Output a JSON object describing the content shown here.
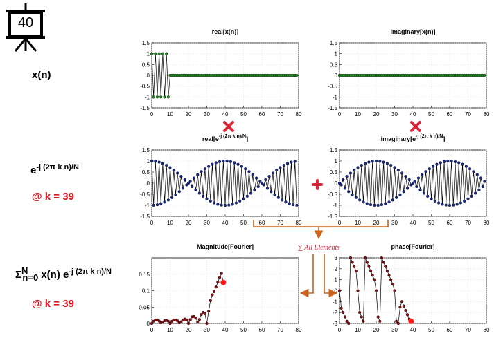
{
  "slide_badge": "40",
  "row_labels": {
    "xn": "x(n)",
    "kernel_base": "e",
    "kernel_exp": "-j (2π k n)/N",
    "k_value_1": "@ k = 39",
    "sum_symbol": "Σ",
    "sum_upper": "N",
    "sum_lower": "n=0",
    "sum_term": " x(n) e",
    "sum_exp": "-j (2π k n)/N",
    "k_value_2": "@ k = 39"
  },
  "annotations": {
    "sum_note": "∑ All Elements",
    "multiply_icon": "multiply-icon",
    "plus_icon": "plus-icon"
  },
  "colors": {
    "green_marker": "#1a8a1a",
    "blue_marker": "#1a2a8c",
    "red_marker": "#8b0f12",
    "highlight": "#ff1a1a",
    "arrow": "#c8641e",
    "red_icon": "#d8263a"
  },
  "chart_data": [
    {
      "id": "real_x",
      "type": "line",
      "title": "real[x(n)]",
      "xlim": [
        0,
        80
      ],
      "ylim": [
        -1.5,
        1.5
      ],
      "xticks": [
        "0",
        "10",
        "20",
        "30",
        "40",
        "50",
        "60",
        "70",
        "80"
      ],
      "yticks": [
        "1.5",
        "1",
        "0.5",
        "0",
        "-0.5",
        "-1",
        "-1.5"
      ],
      "grid": true,
      "series": [
        {
          "x": [
            0,
            1,
            2,
            3,
            4,
            5,
            6,
            7,
            8,
            9,
            10,
            11,
            12,
            13,
            14,
            15,
            16,
            17,
            18,
            19,
            20,
            21,
            22,
            23,
            24,
            25,
            26,
            27,
            28,
            29,
            30,
            31,
            32,
            33,
            34,
            35,
            36,
            37,
            38,
            39,
            40,
            41,
            42,
            43,
            44,
            45,
            46,
            47,
            48,
            49,
            50,
            51,
            52,
            53,
            54,
            55,
            56,
            57,
            58,
            59,
            60,
            61,
            62,
            63,
            64,
            65,
            66,
            67,
            68,
            69,
            70,
            71,
            72,
            73,
            74,
            75,
            76,
            77,
            78,
            79
          ],
          "y": [
            1,
            -1,
            1,
            -1,
            1,
            -1,
            1,
            -1,
            1,
            -1,
            0,
            0,
            0,
            0,
            0,
            0,
            0,
            0,
            0,
            0,
            0,
            0,
            0,
            0,
            0,
            0,
            0,
            0,
            0,
            0,
            0,
            0,
            0,
            0,
            0,
            0,
            0,
            0,
            0,
            0,
            0,
            0,
            0,
            0,
            0,
            0,
            0,
            0,
            0,
            0,
            0,
            0,
            0,
            0,
            0,
            0,
            0,
            0,
            0,
            0,
            0,
            0,
            0,
            0,
            0,
            0,
            0,
            0,
            0,
            0,
            0,
            0,
            0,
            0,
            0,
            0,
            0,
            0,
            0,
            0
          ]
        }
      ]
    },
    {
      "id": "imag_x",
      "type": "line",
      "title": "imaginary[x(n)]",
      "xlim": [
        0,
        80
      ],
      "ylim": [
        -1.5,
        1.5
      ],
      "xticks": [
        "0",
        "10",
        "20",
        "30",
        "40",
        "50",
        "60",
        "70",
        "80"
      ],
      "yticks": [
        "1.5",
        "1",
        "0.5",
        "0",
        "-0.5",
        "-1",
        "-1.5"
      ],
      "grid": true,
      "series": [
        {
          "x": [
            0,
            1,
            2,
            3,
            4,
            5,
            6,
            7,
            8,
            9,
            10,
            11,
            12,
            13,
            14,
            15,
            16,
            17,
            18,
            19,
            20,
            21,
            22,
            23,
            24,
            25,
            26,
            27,
            28,
            29,
            30,
            31,
            32,
            33,
            34,
            35,
            36,
            37,
            38,
            39,
            40,
            41,
            42,
            43,
            44,
            45,
            46,
            47,
            48,
            49,
            50,
            51,
            52,
            53,
            54,
            55,
            56,
            57,
            58,
            59,
            60,
            61,
            62,
            63,
            64,
            65,
            66,
            67,
            68,
            69,
            70,
            71,
            72,
            73,
            74,
            75,
            76,
            77,
            78,
            79
          ],
          "y": [
            0,
            0,
            0,
            0,
            0,
            0,
            0,
            0,
            0,
            0,
            0,
            0,
            0,
            0,
            0,
            0,
            0,
            0,
            0,
            0,
            0,
            0,
            0,
            0,
            0,
            0,
            0,
            0,
            0,
            0,
            0,
            0,
            0,
            0,
            0,
            0,
            0,
            0,
            0,
            0,
            0,
            0,
            0,
            0,
            0,
            0,
            0,
            0,
            0,
            0,
            0,
            0,
            0,
            0,
            0,
            0,
            0,
            0,
            0,
            0,
            0,
            0,
            0,
            0,
            0,
            0,
            0,
            0,
            0,
            0,
            0,
            0,
            0,
            0,
            0,
            0,
            0,
            0,
            0,
            0
          ]
        }
      ]
    },
    {
      "id": "real_kernel",
      "type": "line",
      "title_base": "real[e",
      "title_exp": "-j (2π k n)/N",
      "title_end": "]",
      "xlim": [
        0,
        80
      ],
      "ylim": [
        -1.5,
        1.5
      ],
      "xticks": [
        "0",
        "10",
        "20",
        "30",
        "40",
        "50",
        "60",
        "70",
        "80"
      ],
      "yticks": [
        "1.5",
        "1",
        "0.5",
        "0",
        "-0.5",
        "-1",
        "-1.5"
      ],
      "grid": true,
      "series": [
        {
          "x": [
            0,
            1,
            2,
            3,
            4,
            5,
            6,
            7,
            8,
            9,
            10,
            11,
            12,
            13,
            14,
            15,
            16,
            17,
            18,
            19,
            20,
            21,
            22,
            23,
            24,
            25,
            26,
            27,
            28,
            29,
            30,
            31,
            32,
            33,
            34,
            35,
            36,
            37,
            38,
            39,
            40,
            41,
            42,
            43,
            44,
            45,
            46,
            47,
            48,
            49,
            50,
            51,
            52,
            53,
            54,
            55,
            56,
            57,
            58,
            59,
            60,
            61,
            62,
            63,
            64,
            65,
            66,
            67,
            68,
            69,
            70,
            71,
            72,
            73,
            74,
            75,
            76,
            77,
            78,
            79
          ],
          "y": [
            1,
            -0.997,
            0.988,
            -0.972,
            0.951,
            -0.924,
            0.891,
            -0.853,
            0.809,
            -0.76,
            0.707,
            -0.649,
            0.588,
            -0.522,
            0.454,
            -0.383,
            0.309,
            -0.233,
            0.156,
            -0.078,
            0,
            0.078,
            -0.156,
            0.233,
            -0.309,
            0.383,
            -0.454,
            0.522,
            -0.588,
            0.649,
            -0.707,
            0.76,
            -0.809,
            0.853,
            -0.891,
            0.924,
            -0.951,
            0.972,
            -0.988,
            0.997,
            -1,
            0.997,
            -0.988,
            0.972,
            -0.951,
            0.924,
            -0.891,
            0.853,
            -0.809,
            0.76,
            -0.707,
            0.649,
            -0.588,
            0.522,
            -0.454,
            0.383,
            -0.309,
            0.233,
            -0.156,
            0.078,
            0,
            -0.078,
            0.156,
            -0.233,
            0.309,
            -0.383,
            0.454,
            -0.522,
            0.588,
            -0.649,
            0.707,
            -0.76,
            0.809,
            -0.853,
            0.891,
            -0.924,
            0.951,
            -0.972,
            0.988,
            -0.997
          ]
        }
      ]
    },
    {
      "id": "imag_kernel",
      "type": "line",
      "title_base": "imaginary[e",
      "title_exp": "-j (2π k n)/N",
      "title_end": "]",
      "xlim": [
        0,
        80
      ],
      "ylim": [
        -1.5,
        1.5
      ],
      "xticks": [
        "0",
        "10",
        "20",
        "30",
        "40",
        "50",
        "60",
        "70",
        "80"
      ],
      "yticks": [
        "1.5",
        "1",
        "0.5",
        "0",
        "-0.5",
        "-1",
        "-1.5"
      ],
      "grid": true,
      "series": [
        {
          "x": [
            0,
            1,
            2,
            3,
            4,
            5,
            6,
            7,
            8,
            9,
            10,
            11,
            12,
            13,
            14,
            15,
            16,
            17,
            18,
            19,
            20,
            21,
            22,
            23,
            24,
            25,
            26,
            27,
            28,
            29,
            30,
            31,
            32,
            33,
            34,
            35,
            36,
            37,
            38,
            39,
            40,
            41,
            42,
            43,
            44,
            45,
            46,
            47,
            48,
            49,
            50,
            51,
            52,
            53,
            54,
            55,
            56,
            57,
            58,
            59,
            60,
            61,
            62,
            63,
            64,
            65,
            66,
            67,
            68,
            69,
            70,
            71,
            72,
            73,
            74,
            75,
            76,
            77,
            78,
            79
          ],
          "y": [
            0,
            -0.078,
            0.156,
            -0.233,
            0.309,
            -0.383,
            0.454,
            -0.522,
            0.588,
            -0.649,
            0.707,
            -0.76,
            0.809,
            -0.853,
            0.891,
            -0.924,
            0.951,
            -0.972,
            0.988,
            -0.997,
            1,
            -0.997,
            0.988,
            -0.972,
            0.951,
            -0.924,
            0.891,
            -0.853,
            0.809,
            -0.76,
            0.707,
            -0.649,
            0.588,
            -0.522,
            0.454,
            -0.383,
            0.309,
            -0.233,
            0.156,
            -0.078,
            0,
            0.078,
            -0.156,
            0.233,
            -0.309,
            0.383,
            -0.454,
            0.522,
            -0.588,
            0.649,
            -0.707,
            0.76,
            -0.809,
            0.853,
            -0.891,
            0.924,
            -0.951,
            0.972,
            -0.988,
            0.997,
            -1,
            0.997,
            -0.988,
            0.972,
            -0.951,
            0.924,
            -0.891,
            0.853,
            -0.809,
            0.76,
            -0.707,
            0.649,
            -0.588,
            0.522,
            -0.454,
            0.383,
            -0.309,
            0.233,
            -0.156,
            0.078
          ]
        }
      ]
    },
    {
      "id": "magnitude",
      "type": "line",
      "title": "Magnitude[Fourier]",
      "xlim": [
        0,
        80
      ],
      "ylim": [
        0,
        0.2
      ],
      "xticks": [
        "0",
        "10",
        "20",
        "30",
        "40",
        "50",
        "60",
        "70",
        "80"
      ],
      "yticks": [
        "0.15",
        "0.1",
        "0.05",
        "0"
      ],
      "ytick_values": [
        0.15,
        0.1,
        0.05,
        0
      ],
      "grid": true,
      "series": [
        {
          "x": [
            0,
            1,
            2,
            3,
            4,
            5,
            6,
            7,
            8,
            9,
            10,
            11,
            12,
            13,
            14,
            15,
            16,
            17,
            18,
            19,
            20,
            21,
            22,
            23,
            24,
            25,
            26,
            27,
            28,
            29,
            30,
            31,
            32,
            33,
            34,
            35,
            36,
            37,
            38,
            39
          ],
          "y": [
            0,
            0.0068,
            0.0107,
            0.0108,
            0.0075,
            0.0019,
            0.0041,
            0.0084,
            0.0093,
            0.0068,
            0,
            0.0066,
            0.0107,
            0.0107,
            0.0078,
            0.002,
            0.0051,
            0.0108,
            0.0133,
            0.0111,
            0,
            0.0117,
            0.0202,
            0.0213,
            0.0165,
            0.0045,
            0.0122,
            0.0274,
            0.0338,
            0.0296,
            0,
            0.0373,
            0.0698,
            0.0872,
            0.0971,
            0.1113,
            0.1259,
            0.1399,
            0.1527,
            0.125
          ]
        }
      ],
      "highlight": {
        "x": 39,
        "y": 0.125
      }
    },
    {
      "id": "phase",
      "type": "line",
      "title": "phase[Fourier]",
      "xlim": [
        0,
        80
      ],
      "ylim": [
        -3,
        3
      ],
      "xticks": [
        "0",
        "10",
        "20",
        "30",
        "40",
        "50",
        "60",
        "70",
        "80"
      ],
      "yticks": [
        "3",
        "2",
        "1",
        "0",
        "-1",
        "-2",
        "-3"
      ],
      "ytick_values": [
        3,
        2,
        1,
        0,
        -1,
        -2,
        -3
      ],
      "grid": true,
      "series": [
        {
          "x": [
            0,
            1,
            2,
            3,
            4,
            5,
            6,
            7,
            8,
            9,
            10,
            11,
            12,
            13,
            14,
            15,
            16,
            17,
            18,
            19,
            20,
            21,
            22,
            23,
            24,
            25,
            26,
            27,
            28,
            29,
            30,
            31,
            32,
            33,
            34,
            35,
            36,
            37,
            38,
            39
          ],
          "y": [
            0,
            -1.6,
            -2.0,
            -2.4,
            -2.8,
            -3.1,
            3.0,
            2.6,
            2.2,
            1.8,
            0,
            -2.0,
            -2.4,
            -2.8,
            3.0,
            2.6,
            2.2,
            1.8,
            1.4,
            1.0,
            0,
            -2.4,
            -2.8,
            3.0,
            2.6,
            2.2,
            1.8,
            1.4,
            1.0,
            0.6,
            0,
            -2.8,
            -3.1,
            -1.5,
            -1.0,
            -1.4,
            -1.8,
            -2.2,
            -2.6,
            -2.8
          ]
        }
      ],
      "highlight": {
        "x": 39,
        "y": -2.8
      }
    }
  ]
}
